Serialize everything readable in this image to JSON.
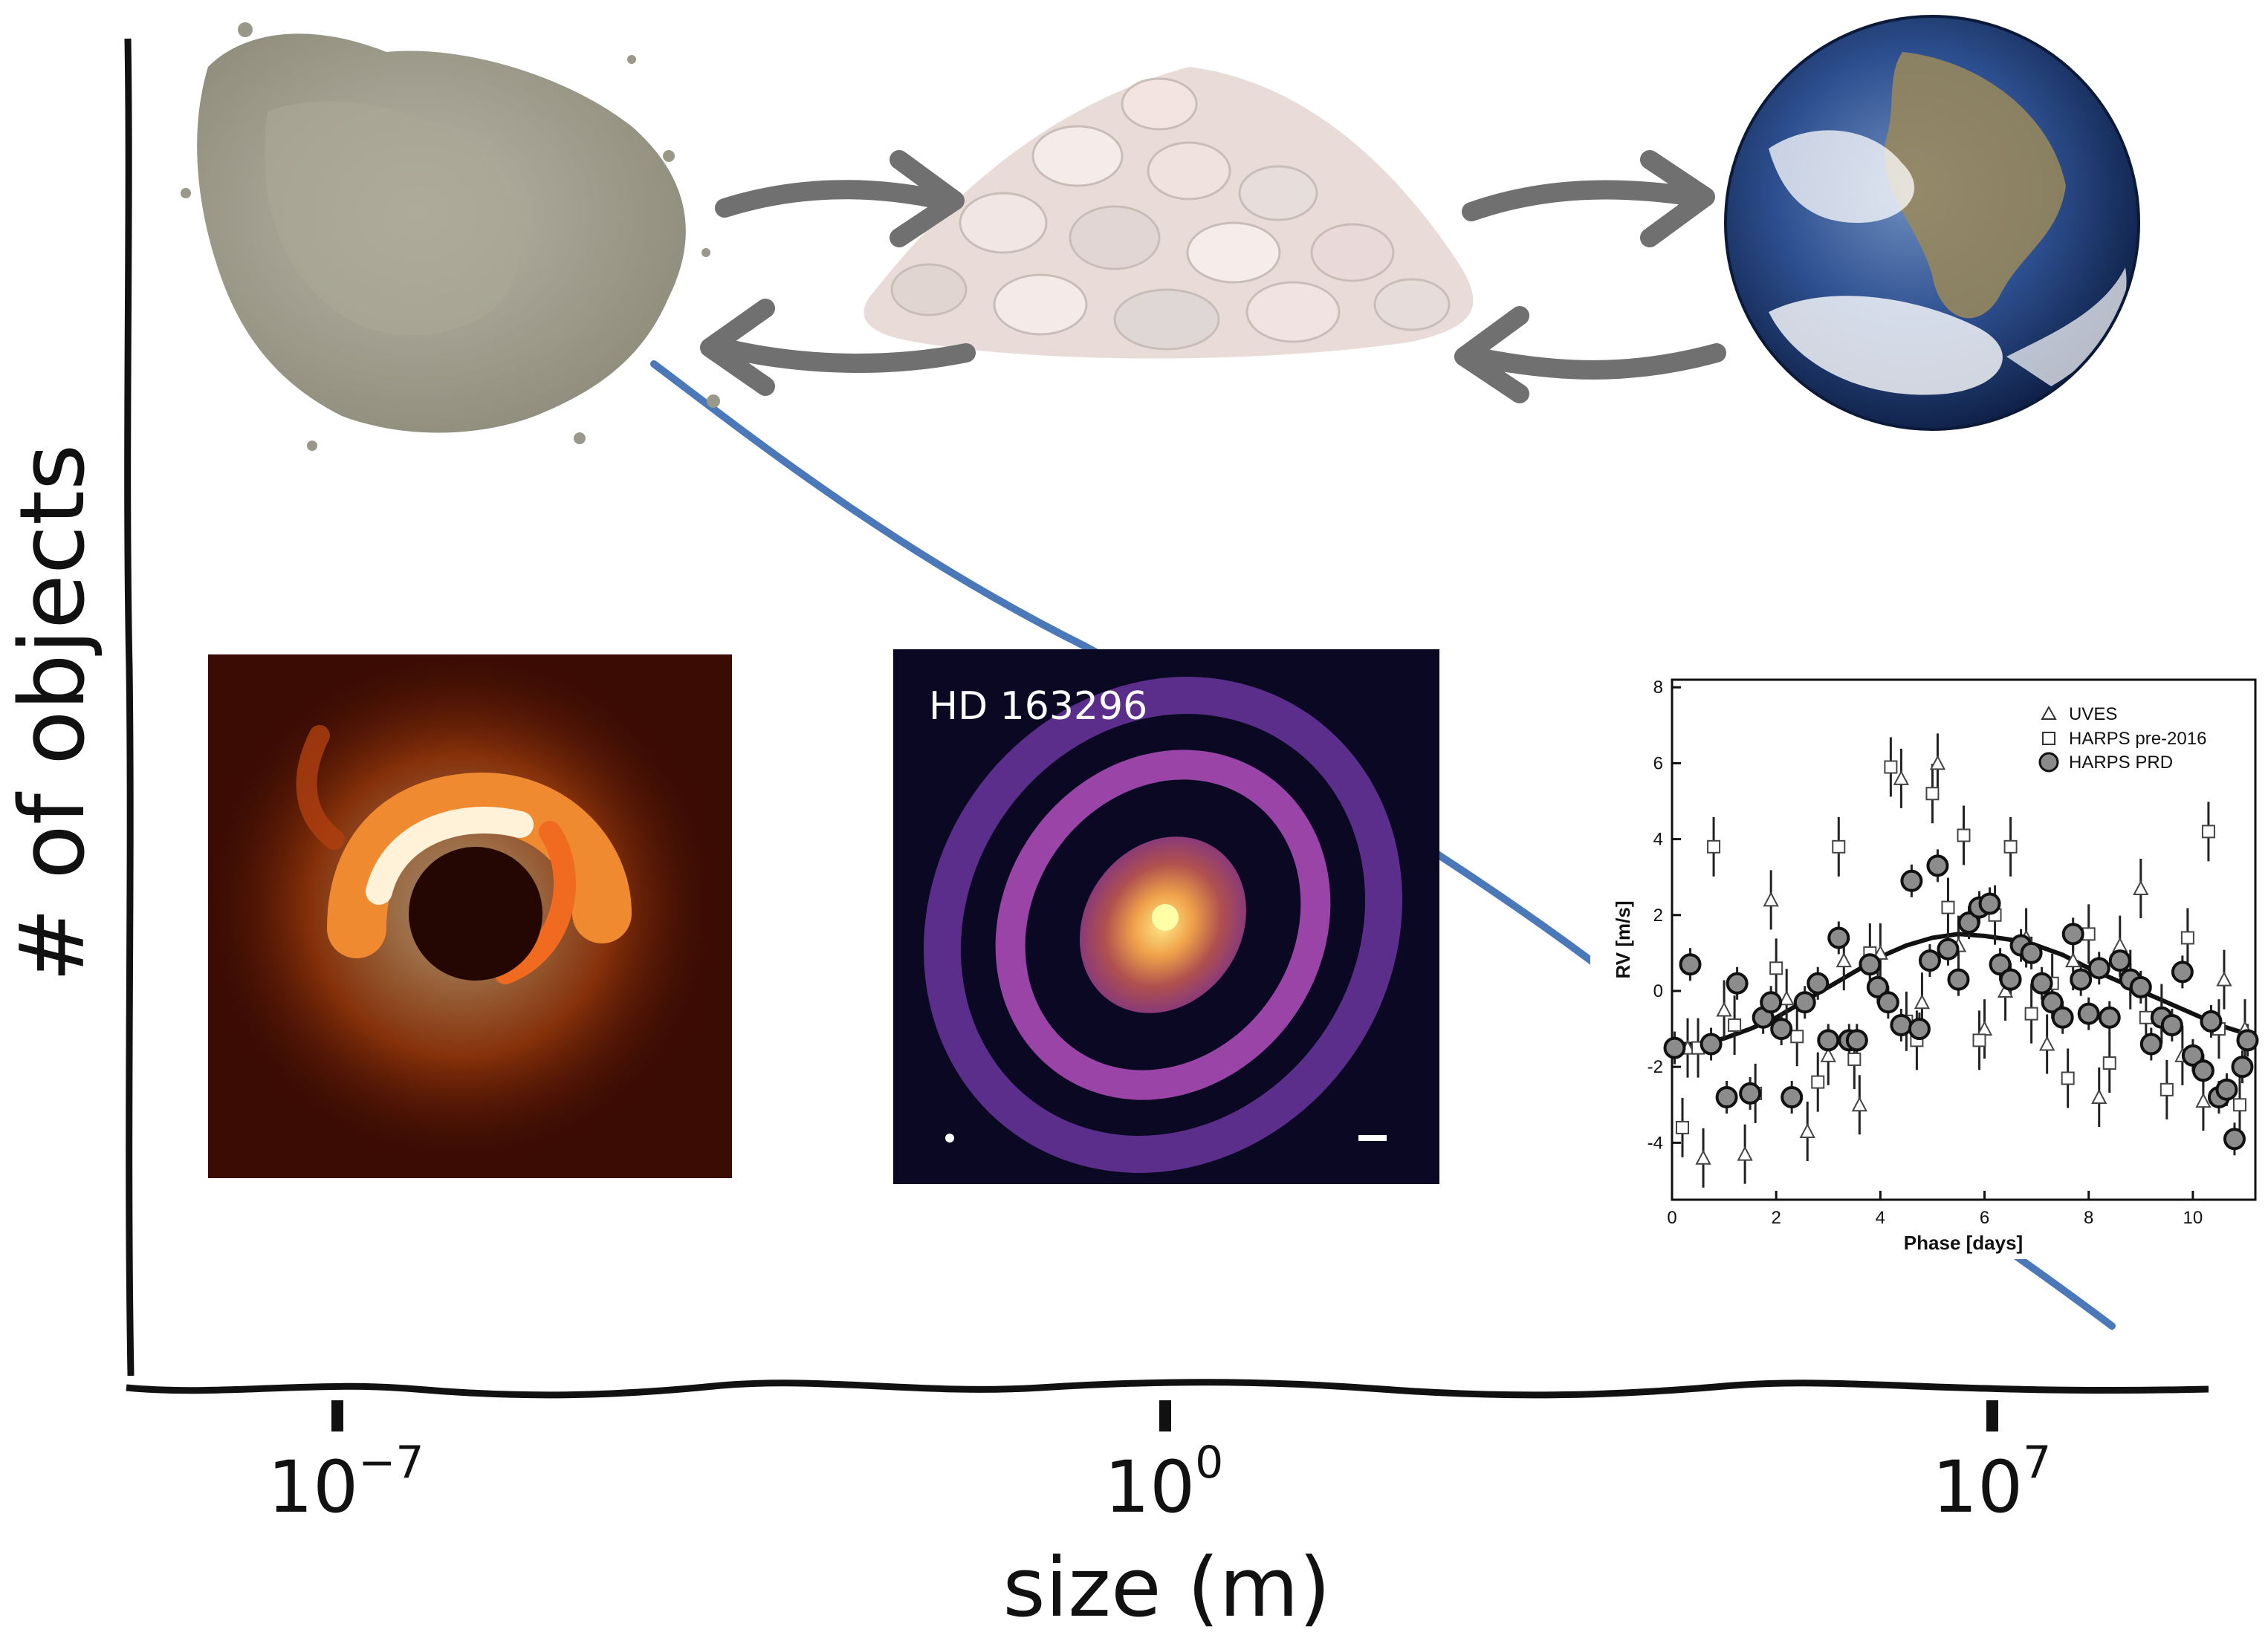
{
  "main_axes": {
    "ylabel": "# of objects",
    "xlabel": "size (m)",
    "x_ticks": [
      {
        "base": "10",
        "exp": "−7",
        "value": -7
      },
      {
        "base": "10",
        "exp": "0",
        "value": 0
      },
      {
        "base": "10",
        "exp": "7",
        "value": 7
      }
    ]
  },
  "images": {
    "hd_title": "HD 163296"
  },
  "chart_data": {
    "type": "scatter",
    "xlabel": "Phase [days]",
    "ylabel": "RV [m/s]",
    "xlim": [
      0,
      11.2
    ],
    "ylim": [
      -5.5,
      8.2
    ],
    "x_ticks": [
      "0",
      "2",
      "4",
      "6",
      "8",
      "10"
    ],
    "y_ticks": [
      "-4",
      "-2",
      "0",
      "2",
      "4",
      "6",
      "8"
    ],
    "legend": [
      "UVES",
      "HARPS pre-2016",
      "HARPS PRD"
    ],
    "legend_position": "top-right",
    "series": [
      {
        "name": "UVES",
        "marker": "triangle",
        "x": [
          0.3,
          0.6,
          1.0,
          1.4,
          1.9,
          2.2,
          2.6,
          3.0,
          3.3,
          3.6,
          4.0,
          4.4,
          4.8,
          5.1,
          5.5,
          6.0,
          6.4,
          6.8,
          7.2,
          7.7,
          8.2,
          8.6,
          9.0,
          9.4,
          9.8,
          10.2,
          10.6,
          11.0
        ],
        "y": [
          -1.5,
          -4.4,
          -0.5,
          -4.3,
          2.4,
          -0.2,
          -3.7,
          -1.7,
          0.8,
          -3.0,
          1.0,
          5.6,
          -0.3,
          6.0,
          1.2,
          -1.0,
          0.0,
          1.4,
          -1.4,
          0.8,
          -2.8,
          1.2,
          2.7,
          -0.6,
          -1.7,
          -2.9,
          0.3,
          -1.0
        ]
      },
      {
        "name": "HARPS pre-2016",
        "marker": "square",
        "x": [
          0.2,
          0.5,
          0.8,
          1.2,
          1.6,
          2.0,
          2.4,
          2.8,
          3.2,
          3.5,
          3.8,
          4.2,
          4.5,
          4.7,
          5.0,
          5.3,
          5.6,
          5.9,
          6.2,
          6.5,
          6.9,
          7.3,
          7.6,
          8.0,
          8.4,
          8.8,
          9.1,
          9.5,
          9.9,
          10.3,
          10.5,
          10.9
        ],
        "y": [
          -3.6,
          -1.5,
          3.8,
          -0.9,
          -2.7,
          0.6,
          -1.2,
          -2.4,
          3.8,
          -1.8,
          1.0,
          5.9,
          -0.8,
          -1.3,
          5.2,
          2.2,
          4.1,
          -1.3,
          2.0,
          3.8,
          -0.6,
          0.2,
          -2.3,
          1.5,
          -1.9,
          0.3,
          -0.7,
          -2.6,
          1.4,
          4.2,
          -1.0,
          -3.0
        ]
      },
      {
        "name": "HARPS PRD",
        "marker": "circle",
        "x": [
          0.05,
          0.35,
          0.75,
          1.05,
          1.25,
          1.5,
          1.75,
          1.9,
          2.1,
          2.3,
          2.55,
          2.8,
          3.0,
          3.2,
          3.4,
          3.55,
          3.8,
          3.95,
          4.15,
          4.4,
          4.6,
          4.75,
          4.95,
          5.1,
          5.3,
          5.5,
          5.7,
          5.9,
          6.1,
          6.3,
          6.5,
          6.7,
          6.9,
          7.1,
          7.3,
          7.5,
          7.7,
          7.85,
          8.0,
          8.2,
          8.4,
          8.6,
          8.8,
          9.0,
          9.2,
          9.4,
          9.6,
          9.8,
          10.0,
          10.2,
          10.35,
          10.5,
          10.65,
          10.8,
          10.95,
          11.05
        ],
        "y": [
          -1.5,
          0.7,
          -1.4,
          -2.8,
          0.2,
          -2.7,
          -0.7,
          -0.3,
          -1.0,
          -2.8,
          -0.3,
          0.2,
          -1.3,
          1.4,
          -1.3,
          -1.3,
          0.7,
          0.1,
          -0.3,
          -0.9,
          2.9,
          -1.0,
          0.8,
          3.3,
          1.1,
          0.3,
          1.8,
          2.2,
          2.3,
          0.7,
          0.3,
          1.2,
          1.0,
          0.2,
          -0.3,
          -0.7,
          1.5,
          0.3,
          -0.6,
          0.6,
          -0.7,
          0.8,
          0.3,
          0.1,
          -1.4,
          -0.7,
          -0.9,
          0.5,
          -1.7,
          -2.1,
          -0.8,
          -2.8,
          -2.6,
          -3.9,
          -2.0,
          -1.3
        ]
      }
    ],
    "fit_curve": {
      "name": "",
      "type": "sinusoid",
      "x": [
        0,
        0.5,
        1,
        1.5,
        2,
        2.5,
        3,
        3.5,
        4,
        4.5,
        5,
        5.5,
        6,
        6.5,
        7,
        7.5,
        8,
        8.5,
        9,
        9.5,
        10,
        10.5,
        11.2
      ],
      "y": [
        -1.4,
        -1.4,
        -1.25,
        -1.0,
        -0.7,
        -0.3,
        0.1,
        0.5,
        0.9,
        1.2,
        1.4,
        1.5,
        1.45,
        1.35,
        1.2,
        0.95,
        0.6,
        0.3,
        0.0,
        -0.3,
        -0.6,
        -0.9,
        -1.2
      ]
    }
  }
}
